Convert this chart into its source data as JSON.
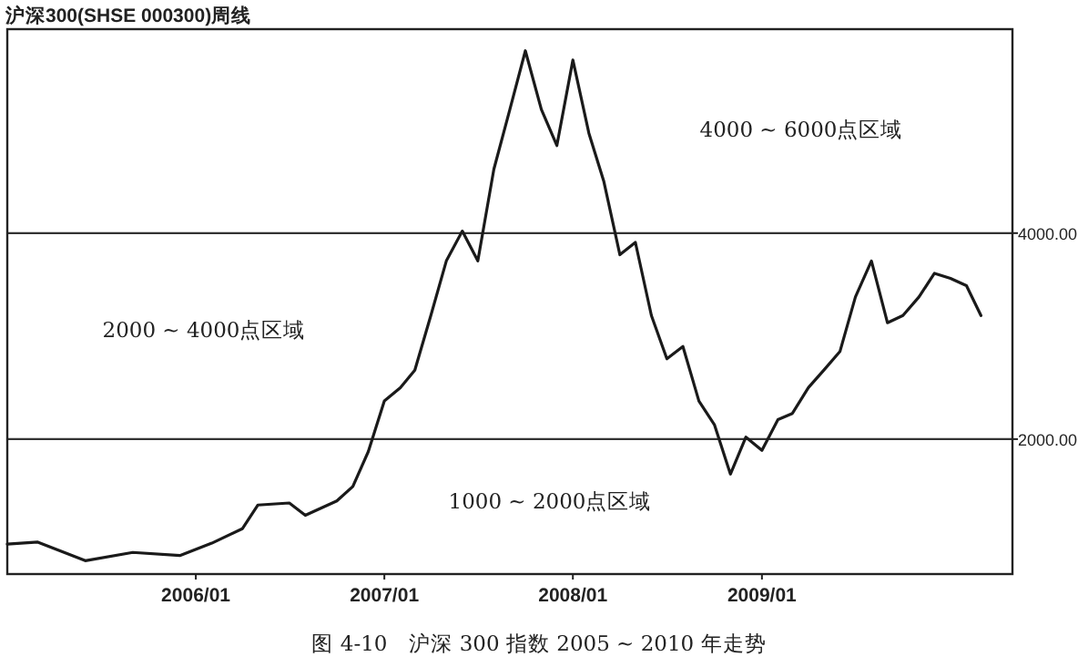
{
  "chart_data": {
    "type": "line",
    "title": "沪深300(SHSE 000300)周线",
    "x": [
      "2005-01",
      "2005-03",
      "2005-06",
      "2005-09",
      "2005-12",
      "2006-02",
      "2006-04",
      "2006-05",
      "2006-07",
      "2006-08",
      "2006-10",
      "2006-11",
      "2006-12",
      "2007-01",
      "2007-02",
      "2007-03",
      "2007-04",
      "2007-05",
      "2007-06",
      "2007-07",
      "2007-08",
      "2007-09",
      "2007-10",
      "2007-11",
      "2007-12",
      "2008-01",
      "2008-02",
      "2008-03",
      "2008-04",
      "2008-05",
      "2008-06",
      "2008-07",
      "2008-08",
      "2008-09",
      "2008-10",
      "2008-11",
      "2008-12",
      "2009-01",
      "2009-02",
      "2009-03",
      "2009-04",
      "2009-05",
      "2009-06",
      "2009-07",
      "2009-08",
      "2009-09",
      "2009-10",
      "2009-11",
      "2009-12",
      "2010-01",
      "2010-02",
      "2010-03"
    ],
    "series": [
      {
        "color": "#1a1a1a",
        "values": [
          980,
          1000,
          820,
          900,
          870,
          990,
          1130,
          1360,
          1380,
          1260,
          1400,
          1540,
          1880,
          2370,
          2500,
          2670,
          3200,
          3730,
          4020,
          3730,
          4620,
          5200,
          5770,
          5200,
          4850,
          5680,
          4970,
          4500,
          3790,
          3910,
          3200,
          2780,
          2900,
          2370,
          2140,
          1660,
          2020,
          1890,
          2190,
          2250,
          2500,
          2670,
          2850,
          3380,
          3730,
          3130,
          3200,
          3380,
          3610,
          3560,
          3490,
          3200
        ]
      }
    ],
    "xlim": [
      "2005-01-01",
      "2010-05-01"
    ],
    "xticks": [
      {
        "value": "2006-01",
        "label": "2006/01"
      },
      {
        "value": "2007-01",
        "label": "2007/01"
      },
      {
        "value": "2008-01",
        "label": "2008/01"
      },
      {
        "value": "2009-01",
        "label": "2009/01"
      }
    ],
    "ylim": [
      690,
      5980
    ],
    "yticks": [
      {
        "value": 2000,
        "label": "2000.00"
      },
      {
        "value": 4000,
        "label": "4000.00"
      }
    ],
    "ref_lines": [
      {
        "axis": "y",
        "value": 2000
      },
      {
        "axis": "y",
        "value": 4000
      }
    ],
    "annotations": [
      "4000 ~ 6000点区域",
      "2000 ~ 4000点区域",
      "1000 ~ 2000点区域",
      "图 4-10　沪深 300 指数 2005 ~ 2010 年走势"
    ]
  }
}
